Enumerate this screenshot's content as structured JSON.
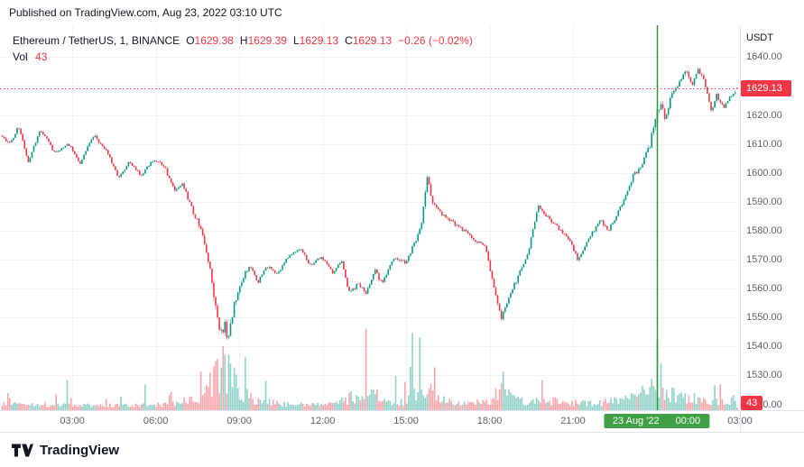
{
  "published_bar": {
    "text": "Published on TradingView.com, Aug 23, 2022 03:10 UTC"
  },
  "legend": {
    "symbol": "Ethereum / TetherUS, 1, BINANCE",
    "o_label": "O",
    "o": "1629.38",
    "h_label": "H",
    "h": "1629.39",
    "l_label": "L",
    "l": "1629.13",
    "c_label": "C",
    "c": "1629.13",
    "change": "−0.26 (−0.02%)",
    "vol_label": "Vol",
    "vol_value": "43"
  },
  "price_axis": {
    "currency": "USDT",
    "ticks": [
      {
        "value": 1640,
        "label": "1640.00"
      },
      {
        "value": 1630,
        "label": "1630.00"
      },
      {
        "value": 1620,
        "label": "1620.00"
      },
      {
        "value": 1610,
        "label": "1610.00"
      },
      {
        "value": 1600,
        "label": "1600.00"
      },
      {
        "value": 1590,
        "label": "1590.00"
      },
      {
        "value": 1580,
        "label": "1580.00"
      },
      {
        "value": 1570,
        "label": "1570.00"
      },
      {
        "value": 1560,
        "label": "1560.00"
      },
      {
        "value": 1550,
        "label": "1550.00"
      },
      {
        "value": 1540,
        "label": "1540.00"
      },
      {
        "value": 1530,
        "label": "1530.00"
      },
      {
        "value": 1520,
        "label": "1520.00"
      }
    ],
    "last_price_badge": "1629.13",
    "volume_badge": "43"
  },
  "time_axis": {
    "ticks": [
      {
        "t": 3,
        "label": "03:00"
      },
      {
        "t": 6,
        "label": "06:00"
      },
      {
        "t": 9,
        "label": "09:00"
      },
      {
        "t": 12,
        "label": "12:00"
      },
      {
        "t": 15,
        "label": "15:00"
      },
      {
        "t": 18,
        "label": "18:00"
      },
      {
        "t": 21,
        "label": "21:00"
      },
      {
        "t": 27,
        "label": "03:00"
      }
    ],
    "date_marker": {
      "t": 24,
      "date": "23 Aug '22",
      "time": "00:00"
    }
  },
  "footer": {
    "brand": "TradingView"
  },
  "colors": {
    "text": "#131722",
    "up": "#089981",
    "down": "#f23645",
    "volume_up": "rgba(8,153,129,0.45)",
    "volume_down": "rgba(242,54,69,0.45)",
    "grid": "#f0f3fa",
    "axis_border": "#e0e3eb",
    "axis_text": "#5d606b",
    "session_line": "#2f9136",
    "date_badge_bg": "#3fa044"
  },
  "chart_data": {
    "type": "candlestick",
    "title": "Ethereum / TetherUS, 1, BINANCE",
    "symbol": "ETHUSDT",
    "interval_minutes": 1,
    "quote_currency": "USDT",
    "x_unit": "hours since 2022-08-22 00:00 UTC",
    "x_range": [
      0.4,
      27.0
    ],
    "y_range": [
      1518,
      1651
    ],
    "grid": true,
    "x_gridlines": [
      3,
      6,
      9,
      12,
      15,
      18,
      21,
      24,
      27
    ],
    "session_break_t": 24,
    "last_price": 1629.13,
    "last": {
      "open": 1629.38,
      "high": 1629.39,
      "low": 1629.13,
      "close": 1629.13,
      "change": -0.26,
      "change_pct": -0.02,
      "volume": 43
    },
    "candles_start_t": 0.45,
    "candle_dt_hours": 0.0667,
    "candle_count": 397,
    "price_path": [
      [
        0.45,
        1613
      ],
      [
        0.8,
        1610
      ],
      [
        1.1,
        1616
      ],
      [
        1.45,
        1604
      ],
      [
        1.9,
        1615
      ],
      [
        2.4,
        1607
      ],
      [
        2.9,
        1610
      ],
      [
        3.3,
        1603
      ],
      [
        3.8,
        1613
      ],
      [
        4.3,
        1607
      ],
      [
        4.7,
        1598
      ],
      [
        5.1,
        1604
      ],
      [
        5.5,
        1599
      ],
      [
        5.9,
        1604
      ],
      [
        6.3,
        1603
      ],
      [
        6.7,
        1594
      ],
      [
        7.0,
        1596
      ],
      [
        7.4,
        1586
      ],
      [
        7.7,
        1580
      ],
      [
        7.95,
        1568
      ],
      [
        8.15,
        1556
      ],
      [
        8.35,
        1543
      ],
      [
        8.5,
        1548
      ],
      [
        8.65,
        1542
      ],
      [
        8.85,
        1554
      ],
      [
        9.1,
        1562
      ],
      [
        9.4,
        1568
      ],
      [
        9.7,
        1562
      ],
      [
        10.0,
        1568
      ],
      [
        10.4,
        1565
      ],
      [
        10.8,
        1571
      ],
      [
        11.2,
        1574
      ],
      [
        11.6,
        1568
      ],
      [
        12.0,
        1571
      ],
      [
        12.4,
        1565
      ],
      [
        12.7,
        1570
      ],
      [
        13.0,
        1558
      ],
      [
        13.3,
        1562
      ],
      [
        13.6,
        1558
      ],
      [
        13.9,
        1566
      ],
      [
        14.2,
        1562
      ],
      [
        14.6,
        1571
      ],
      [
        15.0,
        1569
      ],
      [
        15.35,
        1576
      ],
      [
        15.6,
        1583
      ],
      [
        15.8,
        1598
      ],
      [
        16.0,
        1590
      ],
      [
        16.3,
        1586
      ],
      [
        16.7,
        1583
      ],
      [
        17.1,
        1580
      ],
      [
        17.5,
        1577
      ],
      [
        17.9,
        1574
      ],
      [
        18.15,
        1562
      ],
      [
        18.45,
        1549
      ],
      [
        18.7,
        1556
      ],
      [
        19.0,
        1563
      ],
      [
        19.4,
        1572
      ],
      [
        19.8,
        1589
      ],
      [
        20.1,
        1585
      ],
      [
        20.5,
        1581
      ],
      [
        20.9,
        1577
      ],
      [
        21.2,
        1570
      ],
      [
        21.6,
        1577
      ],
      [
        22.0,
        1584
      ],
      [
        22.3,
        1580
      ],
      [
        22.6,
        1585
      ],
      [
        22.9,
        1592
      ],
      [
        23.2,
        1599
      ],
      [
        23.5,
        1603
      ],
      [
        23.8,
        1610
      ],
      [
        24.0,
        1620
      ],
      [
        24.2,
        1624
      ],
      [
        24.35,
        1618
      ],
      [
        24.6,
        1628
      ],
      [
        24.9,
        1632
      ],
      [
        25.1,
        1636
      ],
      [
        25.3,
        1630
      ],
      [
        25.55,
        1636
      ],
      [
        25.8,
        1630
      ],
      [
        26.0,
        1621
      ],
      [
        26.2,
        1627
      ],
      [
        26.45,
        1622
      ],
      [
        26.65,
        1626
      ],
      [
        26.93,
        1629.13
      ]
    ],
    "activity_profile": [
      [
        0.45,
        0.12
      ],
      [
        2.0,
        0.1
      ],
      [
        4.0,
        0.08
      ],
      [
        6.0,
        0.1
      ],
      [
        7.5,
        0.25
      ],
      [
        8.2,
        0.85
      ],
      [
        8.6,
        1.0
      ],
      [
        9.0,
        0.5
      ],
      [
        9.5,
        0.25
      ],
      [
        10.5,
        0.12
      ],
      [
        11.5,
        0.1
      ],
      [
        12.5,
        0.15
      ],
      [
        13.0,
        0.3
      ],
      [
        13.6,
        0.2
      ],
      [
        13.9,
        0.45
      ],
      [
        14.3,
        0.15
      ],
      [
        15.0,
        0.2
      ],
      [
        15.5,
        0.5
      ],
      [
        15.85,
        0.6
      ],
      [
        16.2,
        0.25
      ],
      [
        17.0,
        0.12
      ],
      [
        18.0,
        0.2
      ],
      [
        18.45,
        0.5
      ],
      [
        18.8,
        0.3
      ],
      [
        19.5,
        0.15
      ],
      [
        20.0,
        0.25
      ],
      [
        21.0,
        0.15
      ],
      [
        22.0,
        0.15
      ],
      [
        23.0,
        0.25
      ],
      [
        23.8,
        0.5
      ],
      [
        24.05,
        0.9
      ],
      [
        24.3,
        0.4
      ],
      [
        25.0,
        0.3
      ],
      [
        25.5,
        0.25
      ],
      [
        26.0,
        0.2
      ],
      [
        26.5,
        0.15
      ],
      [
        26.93,
        0.3
      ]
    ],
    "volume_spikes": [
      [
        2.8,
        0.35
      ],
      [
        5.6,
        0.3
      ],
      [
        7.6,
        0.45
      ],
      [
        8.25,
        0.6
      ],
      [
        8.45,
        0.75
      ],
      [
        8.6,
        0.65
      ],
      [
        8.8,
        0.5
      ],
      [
        13.55,
        0.95
      ],
      [
        14.6,
        0.4
      ],
      [
        15.2,
        0.9
      ],
      [
        15.5,
        0.85
      ],
      [
        16.0,
        0.5
      ],
      [
        18.5,
        0.45
      ],
      [
        19.9,
        0.35
      ],
      [
        24.05,
        0.8
      ],
      [
        24.15,
        0.55
      ],
      [
        26.3,
        0.3
      ]
    ]
  }
}
